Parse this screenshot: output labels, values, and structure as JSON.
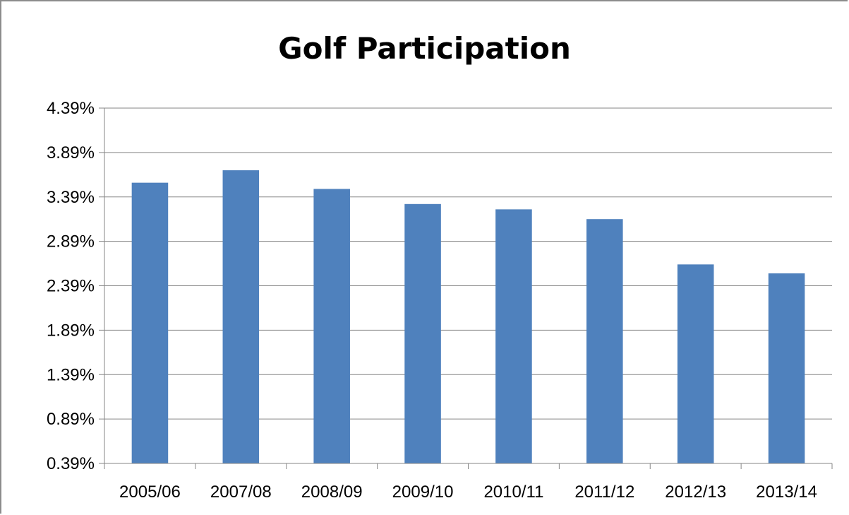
{
  "chart_data": {
    "type": "bar",
    "title": "Golf Participation",
    "xlabel": "",
    "ylabel": "",
    "categories": [
      "2005/06",
      "2007/08",
      "2008/09",
      "2009/10",
      "2010/11",
      "2011/12",
      "2012/13",
      "2013/14"
    ],
    "values": [
      3.55,
      3.69,
      3.48,
      3.31,
      3.25,
      3.14,
      2.63,
      2.53
    ],
    "ylim": [
      0.39,
      4.39
    ],
    "yticks": [
      "0.39%",
      "0.89%",
      "1.39%",
      "1.89%",
      "2.39%",
      "2.89%",
      "3.39%",
      "3.89%",
      "4.39%"
    ],
    "grid": true,
    "legend": "none",
    "colors": {
      "bar": "#4f81bd",
      "grid": "#868686",
      "axis": "#868686"
    }
  }
}
